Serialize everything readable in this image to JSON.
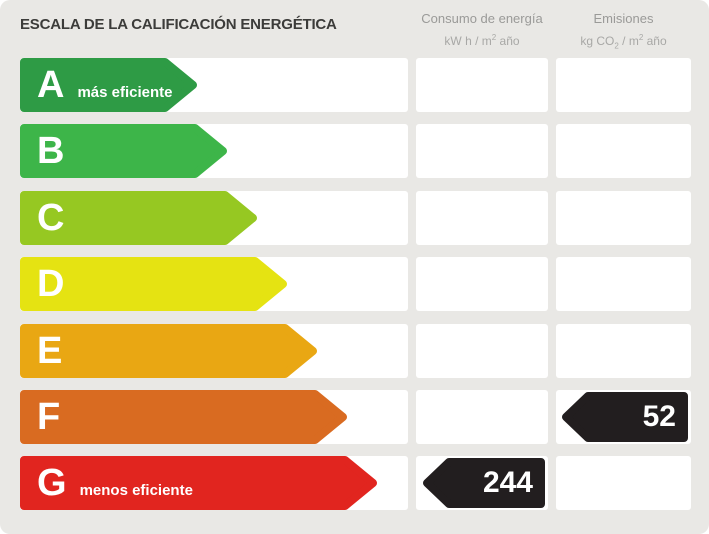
{
  "title": "ESCALA DE LA CALIFICACIÓN ENERGÉTICA",
  "headers": {
    "consumo": {
      "title": "Consumo de energía",
      "unit": {
        "pre": "kW h / m",
        "sup": "2",
        "post": " año"
      }
    },
    "emisiones": {
      "title": "Emisiones",
      "unit": {
        "pre": "kg CO",
        "sub": "2",
        "mid": " / m",
        "sup": "2",
        "post": " año"
      }
    }
  },
  "scale": {
    "rows": [
      {
        "letter": "A",
        "note": "más eficiente",
        "color": "#2e9b45",
        "arrow_width": 177
      },
      {
        "letter": "B",
        "note": "",
        "color": "#3db549",
        "arrow_width": 207
      },
      {
        "letter": "C",
        "note": "",
        "color": "#96c822",
        "arrow_width": 237
      },
      {
        "letter": "D",
        "note": "",
        "color": "#e5e312",
        "arrow_width": 267
      },
      {
        "letter": "E",
        "note": "",
        "color": "#e9a713",
        "arrow_width": 297
      },
      {
        "letter": "F",
        "note": "",
        "color": "#d96b21",
        "arrow_width": 327
      },
      {
        "letter": "G",
        "note": "menos eficiente",
        "color": "#e1251f",
        "arrow_width": 357
      }
    ]
  },
  "values": {
    "consumo": {
      "row_letter": "G",
      "value": "244",
      "color": "#221e1f"
    },
    "emisiones": {
      "row_letter": "F",
      "value": "52",
      "color": "#221e1f"
    }
  },
  "chart_data": {
    "type": "table",
    "title": "ESCALA DE LA CALIFICACIÓN ENERGÉTICA",
    "categories": [
      "A",
      "B",
      "C",
      "D",
      "E",
      "F",
      "G"
    ],
    "category_notes": {
      "A": "más eficiente",
      "G": "menos eficiente"
    },
    "series": [
      {
        "name": "Consumo de energía (kW h / m2 año)",
        "values": [
          null,
          null,
          null,
          null,
          null,
          null,
          244
        ]
      },
      {
        "name": "Emisiones (kg CO2 / m2 año)",
        "values": [
          null,
          null,
          null,
          null,
          null,
          52,
          null
        ]
      }
    ],
    "rating_consumo": "G",
    "rating_emisiones": "F",
    "scale_colors": [
      "#2e9b45",
      "#3db549",
      "#96c822",
      "#e5e312",
      "#e9a713",
      "#d96b21",
      "#e1251f"
    ],
    "value_marker_color": "#221e1f"
  }
}
